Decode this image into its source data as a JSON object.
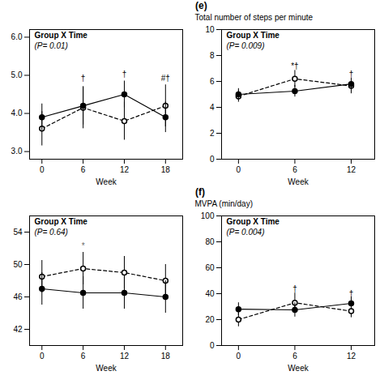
{
  "chart_data": [
    {
      "type": "line",
      "title": "Group X Time",
      "subtitle": "(P= 0.01)",
      "x": [
        0,
        6,
        12,
        18
      ],
      "xlabel": "Week",
      "xlim": [
        -1.8,
        20.5
      ],
      "xticks": [
        0,
        6,
        12,
        18
      ],
      "ylim": [
        2.8,
        6.2
      ],
      "yticks": [
        3,
        4,
        5,
        6
      ],
      "grid": false,
      "series": [
        {
          "color": "black",
          "marker": "open_circle",
          "line_style": "dashed",
          "values": [
            3.6,
            4.15,
            3.8,
            4.2
          ],
          "errors": [
            0.45,
            0.55,
            0.5,
            0.55
          ]
        },
        {
          "color": "black",
          "marker": "circle",
          "line_style": "solid",
          "values": [
            3.9,
            4.2,
            4.5,
            3.9
          ],
          "errors": [
            0.35,
            0.5,
            0.35,
            0.4
          ]
        }
      ],
      "annotations": [
        {
          "x": 6,
          "y": 4.85,
          "text": "†",
          "color": "black"
        },
        {
          "x": 12,
          "y": 4.95,
          "text": "†",
          "color": "black"
        },
        {
          "x": 18,
          "y": 4.85,
          "text": "#†",
          "color": "black"
        }
      ]
    },
    {
      "type": "line",
      "title": "Group X Time",
      "subtitle": "(P= 0.009)",
      "panel_label": "(e)",
      "x": [
        0,
        6,
        12
      ],
      "xlabel": "Week",
      "ylabel": "Total number of steps per minute",
      "xlim": [
        -1.8,
        14.5
      ],
      "xticks": [
        0,
        6,
        12
      ],
      "ylim": [
        0,
        10
      ],
      "yticks": [
        0,
        2,
        4,
        6,
        8,
        10
      ],
      "grid": false,
      "series": [
        {
          "color": "black",
          "marker": "open_circle",
          "line_style": "dashed",
          "values": [
            4.85,
            6.2,
            5.65
          ],
          "errors": [
            0.45,
            0.65,
            0.6
          ]
        },
        {
          "color": "black",
          "marker": "circle",
          "line_style": "solid",
          "values": [
            5.0,
            5.25,
            5.8
          ],
          "errors": [
            0.45,
            0.45,
            0.45
          ]
        }
      ],
      "annotations": [
        {
          "x": 6,
          "y": 7.0,
          "text": "*†",
          "color": "black"
        },
        {
          "x": 12,
          "y": 6.35,
          "text": "†",
          "color": "black"
        }
      ]
    },
    {
      "type": "line",
      "title": "Group X Time",
      "subtitle": "(P= 0.64)",
      "x": [
        0,
        6,
        12,
        18
      ],
      "xlabel": "Week",
      "xlim": [
        -1.8,
        20.5
      ],
      "xticks": [
        0,
        6,
        12,
        18
      ],
      "ylim": [
        40,
        56
      ],
      "yticks": [
        42,
        46,
        50,
        54
      ],
      "grid": false,
      "series": [
        {
          "color": "black",
          "marker": "open_circle",
          "line_style": "dashed",
          "values": [
            48.5,
            49.5,
            49.0,
            48.0
          ],
          "errors": [
            2.0,
            2.0,
            2.0,
            2.0
          ]
        },
        {
          "color": "black",
          "marker": "circle",
          "line_style": "solid",
          "values": [
            47.0,
            46.5,
            46.5,
            46.0
          ],
          "errors": [
            2.0,
            2.0,
            2.0,
            2.0
          ]
        }
      ],
      "annotations": [
        {
          "x": 6,
          "y": 52.0,
          "text": "*",
          "color": "dimgray"
        }
      ]
    },
    {
      "type": "line",
      "title": "Group X Time",
      "subtitle": "(P= 0.004)",
      "panel_label": "(f)",
      "x": [
        0,
        6,
        12
      ],
      "xlabel": "Week",
      "ylabel": "MVPA (min/day)",
      "xlim": [
        -1.8,
        14.5
      ],
      "xticks": [
        0,
        6,
        12
      ],
      "ylim": [
        0,
        100
      ],
      "yticks": [
        0,
        20,
        40,
        60,
        80,
        100
      ],
      "grid": false,
      "series": [
        {
          "color": "black",
          "marker": "open_circle",
          "line_style": "dashed",
          "values": [
            20.0,
            33.0,
            26.5
          ],
          "errors": [
            5.5,
            7.5,
            5.0
          ]
        },
        {
          "color": "black",
          "marker": "circle",
          "line_style": "solid",
          "values": [
            28.0,
            27.5,
            32.5
          ],
          "errors": [
            5.0,
            5.5,
            5.0
          ]
        }
      ],
      "annotations": [
        {
          "x": 6,
          "y": 41.5,
          "text": "†",
          "color": "black"
        },
        {
          "x": 12,
          "y": 38.0,
          "text": "†",
          "color": "black"
        }
      ]
    }
  ]
}
